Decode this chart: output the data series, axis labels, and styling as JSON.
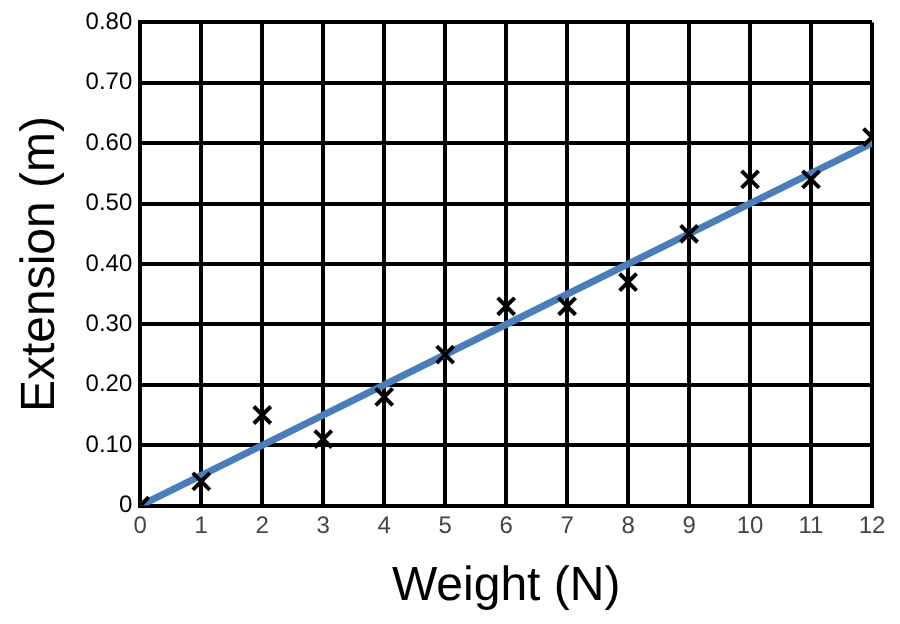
{
  "chart_data": {
    "type": "scatter",
    "xlabel": "Weight (N)",
    "ylabel": "Extension (m)",
    "x": [
      0,
      1,
      2,
      3,
      4,
      5,
      6,
      7,
      8,
      9,
      10,
      11,
      12
    ],
    "series": [
      {
        "color": "#000000",
        "marker": "cross",
        "values": [
          0,
          0.04,
          0.15,
          0.11,
          0.18,
          0.25,
          0.33,
          0.33,
          0.37,
          0.45,
          0.54,
          0.54,
          0.61
        ]
      },
      {
        "type": "line",
        "color": "#4a7ebb",
        "marker": "none",
        "line_style": "solid",
        "x": [
          0,
          12
        ],
        "values": [
          0,
          0.6
        ]
      }
    ],
    "xlim": [
      0,
      12
    ],
    "xticks": [
      0,
      1,
      2,
      3,
      4,
      5,
      6,
      7,
      8,
      9,
      10,
      11,
      12
    ],
    "ylim": [
      0,
      0.8
    ],
    "yticks": [
      {
        "value": 0,
        "label": "0"
      },
      {
        "value": 0.1,
        "label": "0.10"
      },
      {
        "value": 0.2,
        "label": "0.20"
      },
      {
        "value": 0.3,
        "label": "0.30"
      },
      {
        "value": 0.4,
        "label": "0.40"
      },
      {
        "value": 0.5,
        "label": "0.50"
      },
      {
        "value": 0.6,
        "label": "0.60"
      },
      {
        "value": 0.7,
        "label": "0.70"
      },
      {
        "value": 0.8,
        "label": "0.80"
      }
    ],
    "grid": true,
    "legend": false
  }
}
